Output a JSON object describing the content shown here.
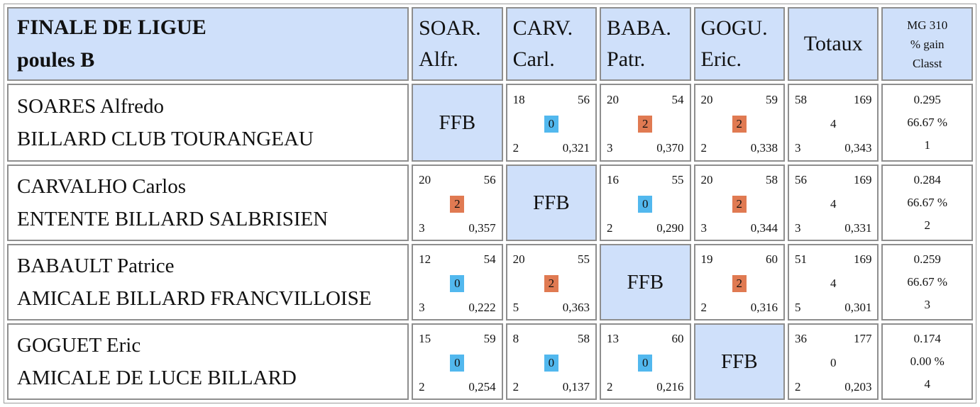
{
  "header": {
    "title_line1": "FINALE DE LIGUE",
    "title_line2": "poules B",
    "opponents": [
      {
        "l1": "SOAR.",
        "l2": "Alfr."
      },
      {
        "l1": "CARV.",
        "l2": "Carl."
      },
      {
        "l1": "BABA.",
        "l2": "Patr."
      },
      {
        "l1": "GOGU.",
        "l2": "Eric."
      }
    ],
    "totaux": "Totaux",
    "mg_l1": "MG 310",
    "mg_l2": "% gain",
    "mg_l3": "Classt"
  },
  "ffb_label": "FFB",
  "colors": {
    "header_bg": "#cfe0fa",
    "win": "#e07a52",
    "loss": "#52b8ee"
  },
  "players": [
    {
      "name": "SOARES Alfredo",
      "club": "BILLARD CLUB TOURANGEAU",
      "matches": [
        null,
        {
          "pts": "18",
          "rep": "56",
          "res": "0",
          "serie": "2",
          "moy": "0,321"
        },
        {
          "pts": "20",
          "rep": "54",
          "res": "2",
          "serie": "3",
          "moy": "0,370"
        },
        {
          "pts": "20",
          "rep": "59",
          "res": "2",
          "serie": "2",
          "moy": "0,338"
        }
      ],
      "totals": {
        "pts": "58",
        "rep": "169",
        "res": "4",
        "serie": "3",
        "moy": "0,343"
      },
      "mg": "0.295",
      "gain": "66.67 %",
      "rank": "1"
    },
    {
      "name": "CARVALHO Carlos",
      "club": "ENTENTE BILLARD SALBRISIEN",
      "matches": [
        {
          "pts": "20",
          "rep": "56",
          "res": "2",
          "serie": "3",
          "moy": "0,357"
        },
        null,
        {
          "pts": "16",
          "rep": "55",
          "res": "0",
          "serie": "2",
          "moy": "0,290"
        },
        {
          "pts": "20",
          "rep": "58",
          "res": "2",
          "serie": "3",
          "moy": "0,344"
        }
      ],
      "totals": {
        "pts": "56",
        "rep": "169",
        "res": "4",
        "serie": "3",
        "moy": "0,331"
      },
      "mg": "0.284",
      "gain": "66.67 %",
      "rank": "2"
    },
    {
      "name": "BABAULT Patrice",
      "club": "AMICALE BILLARD FRANCVILLOISE",
      "matches": [
        {
          "pts": "12",
          "rep": "54",
          "res": "0",
          "serie": "3",
          "moy": "0,222"
        },
        {
          "pts": "20",
          "rep": "55",
          "res": "2",
          "serie": "5",
          "moy": "0,363"
        },
        null,
        {
          "pts": "19",
          "rep": "60",
          "res": "2",
          "serie": "2",
          "moy": "0,316"
        }
      ],
      "totals": {
        "pts": "51",
        "rep": "169",
        "res": "4",
        "serie": "5",
        "moy": "0,301"
      },
      "mg": "0.259",
      "gain": "66.67 %",
      "rank": "3"
    },
    {
      "name": "GOGUET Eric",
      "club": "AMICALE DE LUCE BILLARD",
      "matches": [
        {
          "pts": "15",
          "rep": "59",
          "res": "0",
          "serie": "2",
          "moy": "0,254"
        },
        {
          "pts": "8",
          "rep": "58",
          "res": "0",
          "serie": "2",
          "moy": "0,137"
        },
        {
          "pts": "13",
          "rep": "60",
          "res": "0",
          "serie": "2",
          "moy": "0,216"
        },
        null
      ],
      "totals": {
        "pts": "36",
        "rep": "177",
        "res": "0",
        "serie": "2",
        "moy": "0,203"
      },
      "mg": "0.174",
      "gain": "0.00 %",
      "rank": "4"
    }
  ]
}
